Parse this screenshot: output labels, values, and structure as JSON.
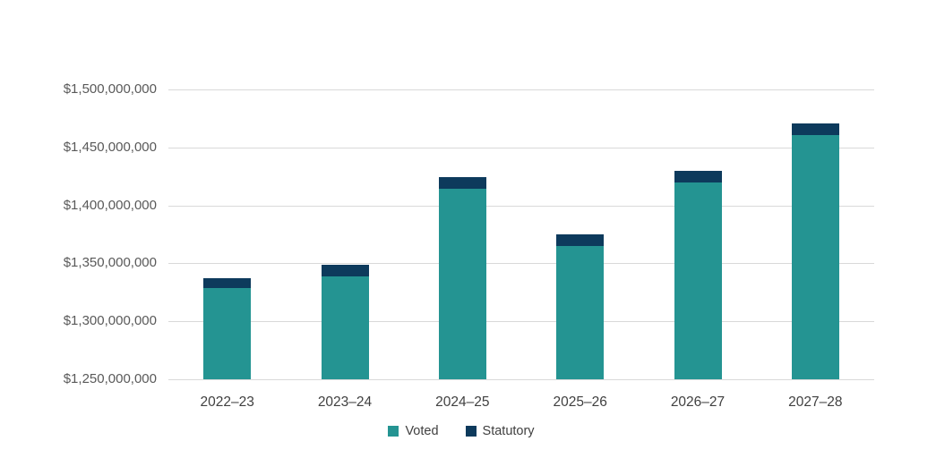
{
  "chart_data": {
    "type": "bar",
    "stacked": true,
    "title": "",
    "xlabel": "",
    "ylabel": "",
    "grid": true,
    "categories": [
      "2022–23",
      "2023–24",
      "2024–25",
      "2025–26",
      "2026–27",
      "2027–28"
    ],
    "series": [
      {
        "name": "Voted",
        "color": "#249492",
        "values": [
          1329000000,
          1339000000,
          1414000000,
          1365000000,
          1420000000,
          1461000000
        ]
      },
      {
        "name": "Statutory",
        "color": "#0d3a5c",
        "values": [
          8000000,
          10000000,
          10000000,
          10000000,
          10000000,
          10000000
        ]
      }
    ],
    "y_axis": {
      "min": 1250000000,
      "max": 1500000000,
      "step": 50000000,
      "tick_labels": [
        "$1,250,000,000",
        "$1,300,000,000",
        "$1,350,000,000",
        "$1,400,000,000",
        "$1,450,000,000",
        "$1,500,000,000"
      ]
    },
    "legend": {
      "position": "bottom",
      "entries": [
        "Voted",
        "Statutory"
      ]
    }
  },
  "colors": {
    "gridline": "#d9d9d9",
    "y_label": "#595959",
    "x_label": "#404040",
    "background": "#ffffff"
  }
}
